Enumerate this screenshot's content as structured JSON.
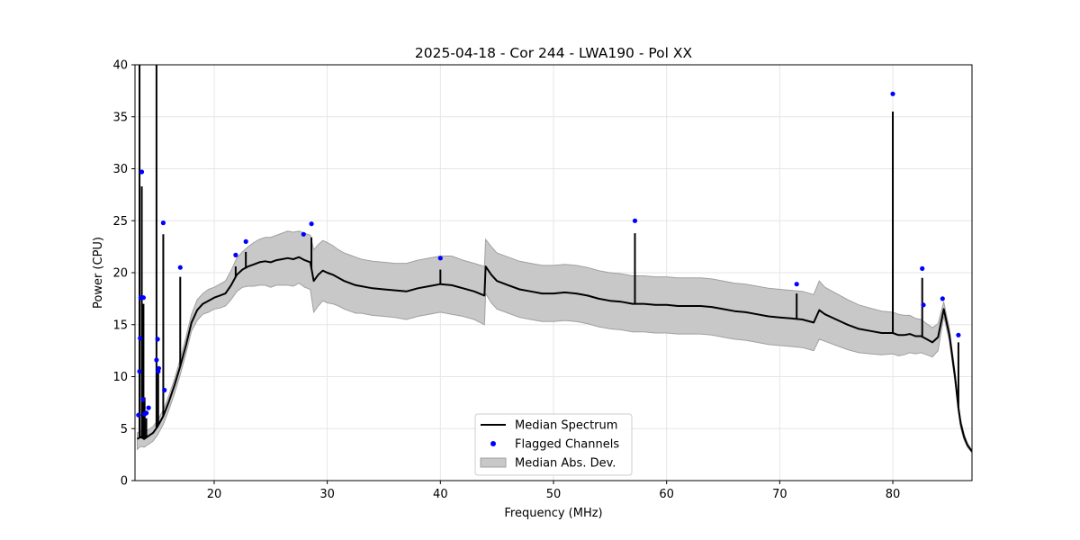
{
  "chart_data": {
    "type": "line",
    "title": "2025-04-18 - Cor 244 - LWA190 - Pol XX",
    "xlabel": "Frequency (MHz)",
    "ylabel": "Power (CPU)",
    "xlim": [
      13,
      87
    ],
    "ylim": [
      0,
      40
    ],
    "xticks": [
      20,
      30,
      40,
      50,
      60,
      70,
      80
    ],
    "yticks": [
      0,
      5,
      10,
      15,
      20,
      25,
      30,
      35,
      40
    ],
    "grid": true,
    "legend_position": "bottom-center",
    "colors": {
      "median": "#000000",
      "flagged": "#0000ff",
      "mad_fill": "#c8c8c8",
      "mad_edge": "#a0a0a0"
    },
    "legend": [
      {
        "label": "Median Spectrum",
        "kind": "line"
      },
      {
        "label": "Flagged Channels",
        "kind": "marker"
      },
      {
        "label": "Median Abs. Dev.",
        "kind": "patch"
      }
    ],
    "series": [
      {
        "name": "Median Spectrum",
        "x": [
          13.2,
          13.5,
          13.8,
          14.2,
          14.6,
          15.0,
          15.5,
          16.0,
          16.5,
          17.0,
          17.5,
          18.0,
          18.5,
          19.0,
          19.5,
          20.0,
          20.5,
          21.0,
          21.5,
          22.0,
          22.5,
          23.0,
          23.5,
          24.0,
          24.5,
          25.0,
          25.5,
          26.0,
          26.5,
          27.0,
          27.5,
          28.0,
          28.5,
          28.8,
          29.2,
          29.6,
          30.0,
          30.5,
          31.0,
          31.5,
          32.0,
          32.5,
          33.0,
          33.5,
          34.0,
          35.0,
          36.0,
          37.0,
          38.0,
          39.0,
          40.0,
          41.0,
          42.0,
          43.0,
          43.9,
          44.0,
          44.5,
          45.0,
          46.0,
          47.0,
          48.0,
          49.0,
          50.0,
          51.0,
          52.0,
          53.0,
          54.0,
          55.0,
          56.0,
          57.0,
          58.0,
          59.0,
          60.0,
          61.0,
          62.0,
          63.0,
          64.0,
          65.0,
          66.0,
          67.0,
          68.0,
          69.0,
          70.0,
          71.0,
          72.0,
          73.0,
          73.5,
          74.0,
          75.0,
          76.0,
          77.0,
          78.0,
          79.0,
          80.0,
          80.5,
          81.0,
          81.5,
          82.0,
          82.5,
          83.0,
          83.5,
          84.0,
          84.5,
          85.0,
          85.5,
          85.8,
          86.0,
          86.3,
          86.6,
          87.0
        ],
        "values": [
          4.0,
          4.2,
          4.0,
          4.3,
          4.6,
          5.2,
          6.2,
          7.6,
          9.2,
          11.0,
          13.0,
          15.2,
          16.4,
          17.0,
          17.3,
          17.6,
          17.8,
          18.0,
          18.8,
          19.8,
          20.3,
          20.6,
          20.8,
          21.0,
          21.1,
          21.0,
          21.2,
          21.3,
          21.4,
          21.3,
          21.5,
          21.2,
          21.0,
          19.2,
          19.8,
          20.2,
          20.0,
          19.8,
          19.5,
          19.2,
          19.0,
          18.8,
          18.7,
          18.6,
          18.5,
          18.4,
          18.3,
          18.2,
          18.5,
          18.7,
          18.9,
          18.8,
          18.5,
          18.2,
          17.8,
          20.6,
          19.8,
          19.2,
          18.8,
          18.4,
          18.2,
          18.0,
          18.0,
          18.1,
          18.0,
          17.8,
          17.5,
          17.3,
          17.2,
          17.0,
          17.0,
          16.9,
          16.9,
          16.8,
          16.8,
          16.8,
          16.7,
          16.5,
          16.3,
          16.2,
          16.0,
          15.8,
          15.7,
          15.6,
          15.5,
          15.2,
          16.4,
          16.0,
          15.5,
          15.0,
          14.6,
          14.4,
          14.2,
          14.2,
          14.0,
          14.0,
          14.1,
          13.9,
          13.9,
          13.6,
          13.3,
          13.8,
          16.5,
          14.0,
          10.0,
          7.0,
          5.5,
          4.2,
          3.4,
          2.8
        ]
      },
      {
        "name": "Median Abs. Dev.",
        "x": [
          13.2,
          13.5,
          13.8,
          14.2,
          14.6,
          15.0,
          15.5,
          16.0,
          16.5,
          17.0,
          17.5,
          18.0,
          18.5,
          19.0,
          19.5,
          20.0,
          20.5,
          21.0,
          21.5,
          22.0,
          22.5,
          23.0,
          23.5,
          24.0,
          24.5,
          25.0,
          25.5,
          26.0,
          26.5,
          27.0,
          27.5,
          28.0,
          28.5,
          28.8,
          29.2,
          29.6,
          30.0,
          30.5,
          31.0,
          31.5,
          32.0,
          32.5,
          33.0,
          33.5,
          34.0,
          35.0,
          36.0,
          37.0,
          38.0,
          39.0,
          40.0,
          41.0,
          42.0,
          43.0,
          43.9,
          44.0,
          44.5,
          45.0,
          46.0,
          47.0,
          48.0,
          49.0,
          50.0,
          51.0,
          52.0,
          53.0,
          54.0,
          55.0,
          56.0,
          57.0,
          58.0,
          59.0,
          60.0,
          61.0,
          62.0,
          63.0,
          64.0,
          65.0,
          66.0,
          67.0,
          68.0,
          69.0,
          70.0,
          71.0,
          72.0,
          73.0,
          73.5,
          74.0,
          75.0,
          76.0,
          77.0,
          78.0,
          79.0,
          80.0,
          80.5,
          81.0,
          81.5,
          82.0,
          82.5,
          83.0,
          83.5,
          84.0,
          84.5,
          85.0,
          85.5,
          85.8,
          86.0,
          86.3,
          86.6,
          87.0
        ],
        "upper": [
          4.6,
          4.8,
          4.6,
          4.9,
          5.2,
          5.8,
          6.8,
          8.2,
          9.8,
          11.7,
          13.8,
          16.0,
          17.4,
          18.0,
          18.4,
          18.6,
          18.9,
          19.2,
          20.2,
          21.4,
          22.0,
          22.5,
          22.9,
          23.2,
          23.4,
          23.4,
          23.6,
          23.8,
          24.0,
          23.9,
          24.0,
          23.8,
          23.6,
          22.2,
          22.7,
          23.1,
          22.9,
          22.6,
          22.2,
          21.9,
          21.7,
          21.5,
          21.3,
          21.2,
          21.1,
          21.0,
          20.9,
          20.9,
          21.2,
          21.4,
          21.6,
          21.6,
          21.2,
          20.9,
          20.6,
          23.2,
          22.5,
          21.9,
          21.5,
          21.1,
          20.9,
          20.7,
          20.7,
          20.8,
          20.7,
          20.5,
          20.2,
          20.0,
          19.9,
          19.7,
          19.7,
          19.6,
          19.6,
          19.5,
          19.5,
          19.5,
          19.4,
          19.2,
          19.0,
          18.9,
          18.7,
          18.5,
          18.4,
          18.3,
          18.2,
          17.9,
          19.2,
          18.6,
          18.0,
          17.4,
          16.9,
          16.6,
          16.3,
          16.2,
          16.0,
          15.9,
          15.9,
          15.6,
          15.5,
          15.1,
          14.7,
          15.1,
          17.2,
          14.6,
          10.5,
          7.4,
          5.9,
          4.5,
          3.6,
          2.9
        ],
        "lower": [
          3.0,
          3.3,
          3.2,
          3.5,
          3.8,
          4.4,
          5.4,
          6.8,
          8.4,
          10.2,
          12.2,
          14.4,
          15.4,
          16.0,
          16.2,
          16.5,
          16.6,
          16.8,
          17.4,
          18.2,
          18.6,
          18.7,
          18.7,
          18.8,
          18.8,
          18.6,
          18.8,
          18.8,
          18.8,
          18.7,
          19.0,
          18.6,
          18.4,
          16.2,
          16.8,
          17.3,
          17.1,
          17.0,
          16.8,
          16.5,
          16.3,
          16.1,
          16.1,
          16.0,
          15.9,
          15.8,
          15.7,
          15.5,
          15.8,
          16.0,
          16.2,
          16.0,
          15.8,
          15.5,
          15.0,
          18.0,
          17.1,
          16.5,
          16.1,
          15.7,
          15.5,
          15.3,
          15.3,
          15.4,
          15.3,
          15.1,
          14.8,
          14.6,
          14.5,
          14.3,
          14.3,
          14.2,
          14.2,
          14.1,
          14.1,
          14.1,
          14.0,
          13.8,
          13.6,
          13.5,
          13.3,
          13.1,
          13.0,
          12.9,
          12.8,
          12.5,
          13.6,
          13.4,
          13.0,
          12.6,
          12.3,
          12.2,
          12.1,
          12.2,
          12.0,
          12.1,
          12.3,
          12.2,
          12.3,
          12.1,
          11.9,
          12.5,
          15.8,
          13.4,
          9.5,
          6.6,
          5.1,
          3.9,
          3.2,
          2.7
        ]
      },
      {
        "name": "Spikes",
        "x": [
          13.4,
          13.6,
          13.75,
          13.85,
          14.0,
          14.9,
          15.05,
          15.5,
          17.0,
          21.9,
          22.8,
          28.6,
          40.0,
          57.2,
          71.5,
          80.0,
          82.6,
          85.8
        ],
        "tops": [
          40.0,
          28.3,
          17.0,
          8.0,
          6.0,
          40.0,
          11.0,
          23.7,
          19.6,
          20.6,
          22.0,
          23.4,
          20.3,
          23.8,
          18.0,
          35.5,
          19.5,
          13.3
        ]
      },
      {
        "name": "Flagged Channels",
        "x": [
          13.3,
          13.4,
          13.45,
          13.5,
          13.6,
          13.7,
          13.75,
          13.85,
          13.95,
          14.0,
          14.2,
          14.9,
          15.0,
          15.05,
          15.1,
          15.5,
          15.6,
          17.0,
          21.9,
          22.8,
          27.9,
          28.6,
          40.0,
          57.2,
          71.5,
          80.0,
          82.6,
          82.7,
          84.4,
          85.8
        ],
        "values": [
          6.3,
          10.5,
          13.7,
          17.6,
          29.7,
          7.8,
          17.6,
          6.4,
          6.5,
          6.5,
          7.0,
          11.6,
          13.6,
          10.5,
          10.8,
          24.8,
          8.7,
          20.5,
          21.7,
          23.0,
          23.7,
          24.7,
          21.4,
          25.0,
          18.9,
          37.2,
          20.4,
          16.9,
          17.5,
          14.0
        ]
      }
    ]
  }
}
